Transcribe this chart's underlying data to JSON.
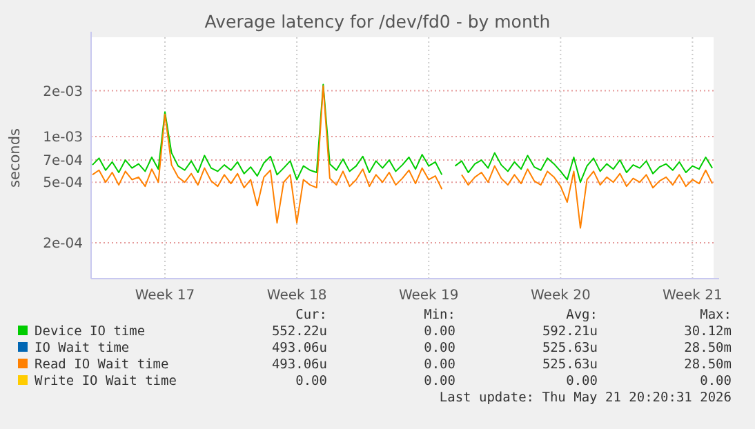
{
  "chart_data": {
    "type": "line",
    "title": "Average latency for /dev/fd0 - by month",
    "ylabel": "seconds",
    "log": "y",
    "grid": true,
    "legend": "bottom",
    "marker": "none",
    "line_style": "solid",
    "categories": [
      null,
      null,
      null,
      null,
      null,
      null,
      null,
      null,
      null,
      null,
      null,
      "Week 17",
      null,
      null,
      null,
      null,
      null,
      null,
      null,
      null,
      null,
      null,
      null,
      null,
      null,
      null,
      null,
      null,
      null,
      null,
      null,
      "Week 18",
      null,
      null,
      null,
      null,
      null,
      null,
      null,
      null,
      null,
      null,
      null,
      null,
      null,
      null,
      null,
      null,
      null,
      null,
      null,
      "Week 19",
      null,
      null,
      null,
      null,
      null,
      null,
      null,
      null,
      null,
      null,
      null,
      null,
      null,
      null,
      null,
      null,
      null,
      null,
      null,
      "Week 20",
      null,
      null,
      null,
      null,
      null,
      null,
      null,
      null,
      null,
      null,
      null,
      null,
      null,
      null,
      null,
      null,
      null,
      null,
      null,
      "Week 21",
      null,
      null,
      null
    ],
    "ylim": [
      0.000116,
      0.0045
    ],
    "yticks": [
      {
        "value": 0.0002,
        "label": "2e-04"
      },
      {
        "value": 0.0005,
        "label": "5e-04"
      },
      {
        "value": 0.0007,
        "label": "7e-04"
      },
      {
        "value": 0.001,
        "label": "1e-03"
      },
      {
        "value": 0.002,
        "label": "2e-03"
      }
    ],
    "series": [
      {
        "name": "Device IO time",
        "color": "#00cc00",
        "values": [
          0.00065,
          0.00072,
          0.0006,
          0.00068,
          0.00058,
          0.0007,
          0.00062,
          0.00066,
          0.00059,
          0.00073,
          0.00061,
          0.00145,
          0.00078,
          0.00064,
          0.0006,
          0.00069,
          0.00058,
          0.00075,
          0.00062,
          0.00059,
          0.00065,
          0.0006,
          0.00068,
          0.00057,
          0.00063,
          0.00055,
          0.00067,
          0.00074,
          0.00056,
          0.00062,
          0.00069,
          0.00052,
          0.00064,
          0.0006,
          0.00058,
          0.0022,
          0.00066,
          0.0006,
          0.00071,
          0.00059,
          0.00064,
          0.00074,
          0.00058,
          0.00069,
          0.00062,
          0.0007,
          0.00059,
          0.00065,
          0.00073,
          0.00061,
          0.00076,
          0.00064,
          0.00068,
          0.00056,
          null,
          0.00064,
          0.00069,
          0.00058,
          0.00066,
          0.0007,
          0.00062,
          0.00078,
          0.00065,
          0.00059,
          0.00068,
          0.00061,
          0.00075,
          0.00063,
          0.0006,
          0.00072,
          0.00066,
          0.00059,
          0.00052,
          0.00073,
          0.0005,
          0.00064,
          0.00072,
          0.00059,
          0.00066,
          0.00061,
          0.0007,
          0.00058,
          0.00065,
          0.00062,
          0.00069,
          0.00057,
          0.00063,
          0.00066,
          0.0006,
          0.00068,
          0.00058,
          0.00064,
          0.00061,
          0.00073,
          0.00062
        ]
      },
      {
        "name": "IO Wait time",
        "color": "#0066b3",
        "values": [
          null,
          null,
          null,
          null,
          null,
          null,
          null,
          null,
          null,
          null,
          null,
          null,
          null,
          null,
          null,
          null,
          null,
          null,
          null,
          null,
          null,
          null,
          null,
          null,
          null,
          null,
          null,
          null,
          null,
          null,
          null,
          null,
          null,
          null,
          null,
          null,
          null,
          null,
          null,
          null,
          null,
          null,
          null,
          null,
          null,
          null,
          null,
          null,
          null,
          null,
          null,
          null,
          null,
          null,
          null,
          null,
          null,
          null,
          null,
          null,
          null,
          null,
          null,
          null,
          null,
          null,
          null,
          null,
          null,
          null,
          null,
          null,
          null,
          null,
          null,
          null,
          null,
          null,
          null,
          null,
          null,
          null,
          null,
          null,
          null,
          null,
          null,
          null,
          null,
          null,
          null,
          null,
          null,
          null,
          null
        ]
      },
      {
        "name": "Read IO Wait time",
        "color": "#ff8000",
        "values": [
          0.00056,
          0.0006,
          0.0005,
          0.00058,
          0.00048,
          0.00059,
          0.00052,
          0.00054,
          0.00047,
          0.00061,
          0.0005,
          0.0014,
          0.00065,
          0.00054,
          0.0005,
          0.00057,
          0.00048,
          0.00062,
          0.00051,
          0.00047,
          0.00056,
          0.00049,
          0.00057,
          0.00046,
          0.00052,
          0.00035,
          0.00054,
          0.0006,
          0.00027,
          0.0005,
          0.00056,
          0.00027,
          0.00052,
          0.00048,
          0.00046,
          0.00215,
          0.00053,
          0.00048,
          0.00059,
          0.00047,
          0.00052,
          0.00061,
          0.00047,
          0.00056,
          0.0005,
          0.00058,
          0.00048,
          0.00053,
          0.0006,
          0.00049,
          0.00062,
          0.00052,
          0.00055,
          0.00045,
          null,
          null,
          0.00056,
          0.00048,
          0.00054,
          0.00058,
          0.0005,
          0.00064,
          0.00053,
          0.00048,
          0.00056,
          0.00049,
          0.00061,
          0.00051,
          0.00048,
          0.00059,
          0.00054,
          0.00047,
          0.00037,
          0.00059,
          0.00025,
          0.00052,
          0.00059,
          0.00048,
          0.00054,
          0.0005,
          0.00057,
          0.00047,
          0.00053,
          0.0005,
          0.00056,
          0.00046,
          0.00051,
          0.00054,
          0.00048,
          0.00056,
          0.00047,
          0.00052,
          0.00049,
          0.0006,
          0.00049
        ]
      },
      {
        "name": "Write IO Wait time",
        "color": "#ffcc00",
        "values": [
          null,
          null,
          null,
          null,
          null,
          null,
          null,
          null,
          null,
          null,
          null,
          null,
          null,
          null,
          null,
          null,
          null,
          null,
          null,
          null,
          null,
          null,
          null,
          null,
          null,
          null,
          null,
          null,
          null,
          null,
          null,
          null,
          null,
          null,
          null,
          null,
          null,
          null,
          null,
          null,
          null,
          null,
          null,
          null,
          null,
          null,
          null,
          null,
          null,
          null,
          null,
          null,
          null,
          null,
          null,
          null,
          null,
          null,
          null,
          null,
          null,
          null,
          null,
          null,
          null,
          null,
          null,
          null,
          null,
          null,
          null,
          null,
          null,
          null,
          null,
          null,
          null,
          null,
          null,
          null,
          null,
          null,
          null,
          null,
          null,
          null,
          null,
          null,
          null,
          null,
          null,
          null,
          null,
          null,
          null
        ]
      }
    ],
    "annotations": [
      "Cur:",
      "Min:",
      "Avg:",
      "Max:",
      "552.22u",
      "0.00",
      "592.21u",
      "30.12m",
      "493.06u",
      "0.00",
      "525.63u",
      "28.50m",
      "493.06u",
      "0.00",
      "525.63u",
      "28.50m",
      "0.00",
      "0.00",
      "0.00",
      "0.00",
      "Last update: Thu May 21 20:20:31 2026"
    ]
  }
}
